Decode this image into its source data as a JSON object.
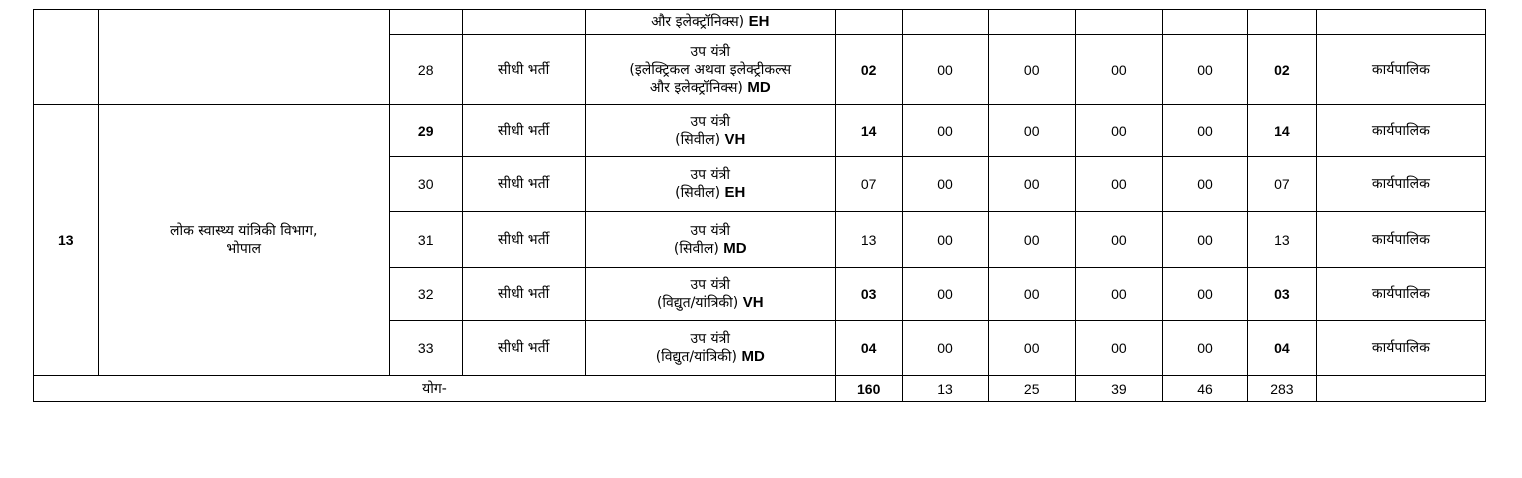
{
  "top_row": {
    "post_tail": "और इलेक्ट्रॉनिक्स)",
    "post_code": "EH"
  },
  "department": {
    "serial": "13",
    "name": "लोक स्वास्थ्य यांत्रिकी विभाग,",
    "city": "भोपाल"
  },
  "rows": [
    {
      "no": "28",
      "mode": "सीधी भर्ती",
      "post_line1": "उप यंत्री",
      "post_line2": "(इलेक्ट्रिकल अथवा इलेक्ट्रीकल्स",
      "post_line3": "और इलेक्ट्रॉनिक्स)",
      "code": "MD",
      "c1": "02",
      "c2": "00",
      "c3": "00",
      "c4": "00",
      "c5": "00",
      "c6": "02",
      "service": "कार्यपालिक"
    },
    {
      "no": "29",
      "mode": "सीधी भर्ती",
      "post_line1": "उप यंत्री",
      "post_line2": "(सिवील)",
      "code": "VH",
      "c1": "14",
      "c2": "00",
      "c3": "00",
      "c4": "00",
      "c5": "00",
      "c6": "14",
      "service": "कार्यपालिक"
    },
    {
      "no": "30",
      "mode": "सीधी भर्ती",
      "post_line1": "उप यंत्री",
      "post_line2": "(सिवील)",
      "code": "EH",
      "c1": "07",
      "c2": "00",
      "c3": "00",
      "c4": "00",
      "c5": "00",
      "c6": "07",
      "service": "कार्यपालिक"
    },
    {
      "no": "31",
      "mode": "सीधी भर्ती",
      "post_line1": "उप यंत्री",
      "post_line2": "(सिवील)",
      "code": "MD",
      "c1": "13",
      "c2": "00",
      "c3": "00",
      "c4": "00",
      "c5": "00",
      "c6": "13",
      "service": "कार्यपालिक"
    },
    {
      "no": "32",
      "mode": "सीधी भर्ती",
      "post_line1": "उप यंत्री",
      "post_line2": "(विद्युत/यांत्रिकी)",
      "code": "VH",
      "c1": "03",
      "c2": "00",
      "c3": "00",
      "c4": "00",
      "c5": "00",
      "c6": "03",
      "service": "कार्यपालिक"
    },
    {
      "no": "33",
      "mode": "सीधी भर्ती",
      "post_line1": "उप यंत्री",
      "post_line2": "(विद्युत/यांत्रिकी)",
      "code": "MD",
      "c1": "04",
      "c2": "00",
      "c3": "00",
      "c4": "00",
      "c5": "00",
      "c6": "04",
      "service": "कार्यपालिक"
    }
  ],
  "total": {
    "label": "योग-",
    "c1": "160",
    "c2": "13",
    "c3": "25",
    "c4": "39",
    "c5": "46",
    "c6": "283"
  }
}
